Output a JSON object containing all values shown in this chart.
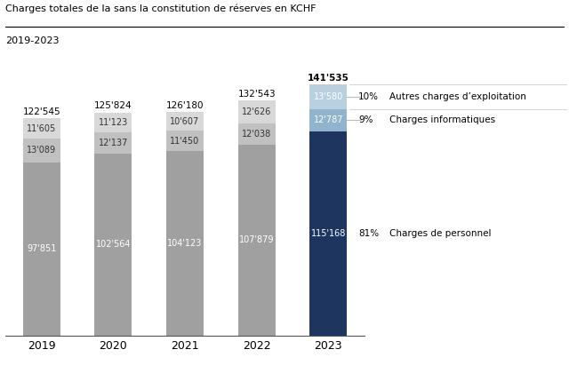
{
  "title": "Charges totales de la sans la constitution de réserves en KCHF",
  "subtitle": "2019-2023",
  "years": [
    "2019",
    "2020",
    "2021",
    "2022",
    "2023"
  ],
  "personnel": [
    97851,
    102564,
    104123,
    107879,
    115168
  ],
  "informatiques": [
    13089,
    12137,
    11450,
    12038,
    12787
  ],
  "exploitation": [
    11605,
    11123,
    10607,
    12626,
    13580
  ],
  "totals": [
    "122'545",
    "125'824",
    "126'180",
    "132'543",
    "141'535"
  ],
  "personnel_labels": [
    "97'851",
    "102'564",
    "104'123",
    "107'879",
    "115'168"
  ],
  "informatiques_labels": [
    "13'089",
    "12'137",
    "11'450",
    "12'038",
    "12'787"
  ],
  "exploitation_labels": [
    "11'605",
    "11'123",
    "10'607",
    "12'626",
    "13'580"
  ],
  "color_personnel_hist": "#a0a0a0",
  "color_informatiques_hist": "#c0c0c0",
  "color_exploitation_hist": "#d8d8d8",
  "color_personnel_2023": "#1e3560",
  "color_informatiques_2023": "#8fb4cc",
  "color_exploitation_2023": "#b8d0e0",
  "legend_entries": [
    {
      "pct": "10%",
      "label": "Autres charges d’exploitation"
    },
    {
      "pct": "9%",
      "label": "Charges informatiques"
    },
    {
      "pct": "81%",
      "label": "Charges de personnel"
    }
  ],
  "ylim": [
    0,
    155000
  ],
  "bar_width": 0.52
}
